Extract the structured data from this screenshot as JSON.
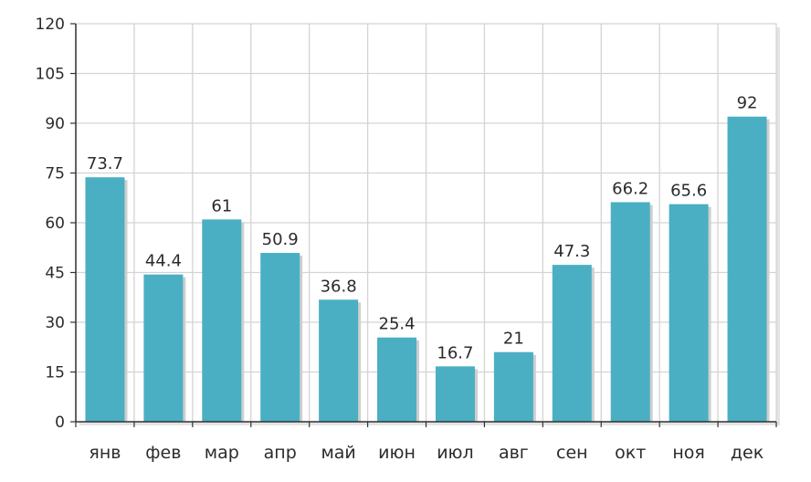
{
  "chart_data": {
    "type": "bar",
    "categories": [
      "янв",
      "фев",
      "мар",
      "апр",
      "май",
      "июн",
      "июл",
      "авг",
      "сен",
      "окт",
      "ноя",
      "дек"
    ],
    "values": [
      73.7,
      44.4,
      61,
      50.9,
      36.8,
      25.4,
      16.7,
      21,
      47.3,
      66.2,
      65.6,
      92
    ],
    "value_labels": [
      "73.7",
      "44.4",
      "61",
      "50.9",
      "36.8",
      "25.4",
      "16.7",
      "21",
      "47.3",
      "66.2",
      "65.6",
      "92"
    ],
    "yticks": [
      "0",
      "15",
      "30",
      "45",
      "60",
      "75",
      "90",
      "105",
      "120"
    ],
    "ylim": [
      0,
      120
    ],
    "title": "",
    "xlabel": "",
    "ylabel": "",
    "grid": true,
    "colors": {
      "bar": "#4aafc3",
      "bar_shadow": "#cfcfcf",
      "grid": "#d4d4d4",
      "plot_bg": "#ffffff",
      "frame_shadow": "#e4e4e4",
      "axis": "#333333",
      "text": "#2b2b2b"
    }
  }
}
